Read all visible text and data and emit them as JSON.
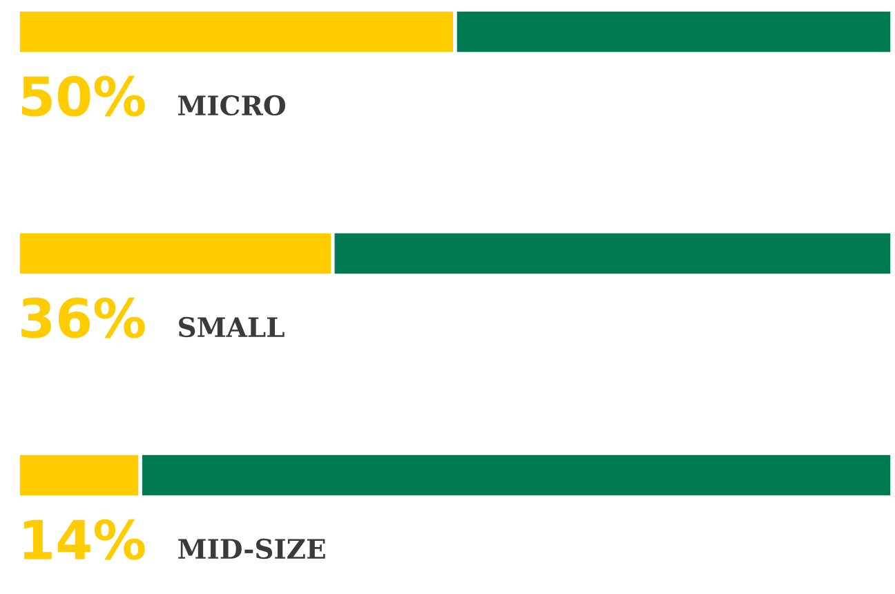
{
  "chart_data": {
    "type": "bar",
    "orientation": "horizontal",
    "stacked": true,
    "categories": [
      "MICRO",
      "SMALL",
      "MID-SIZE"
    ],
    "series": [
      {
        "color": "#ffcc00",
        "values": [
          50,
          36,
          14
        ],
        "value_labels": [
          "50%",
          "36%",
          "14%"
        ]
      },
      {
        "color": "#007a53",
        "values": [
          50,
          64,
          86
        ]
      }
    ],
    "xlim": [
      0,
      100
    ]
  }
}
